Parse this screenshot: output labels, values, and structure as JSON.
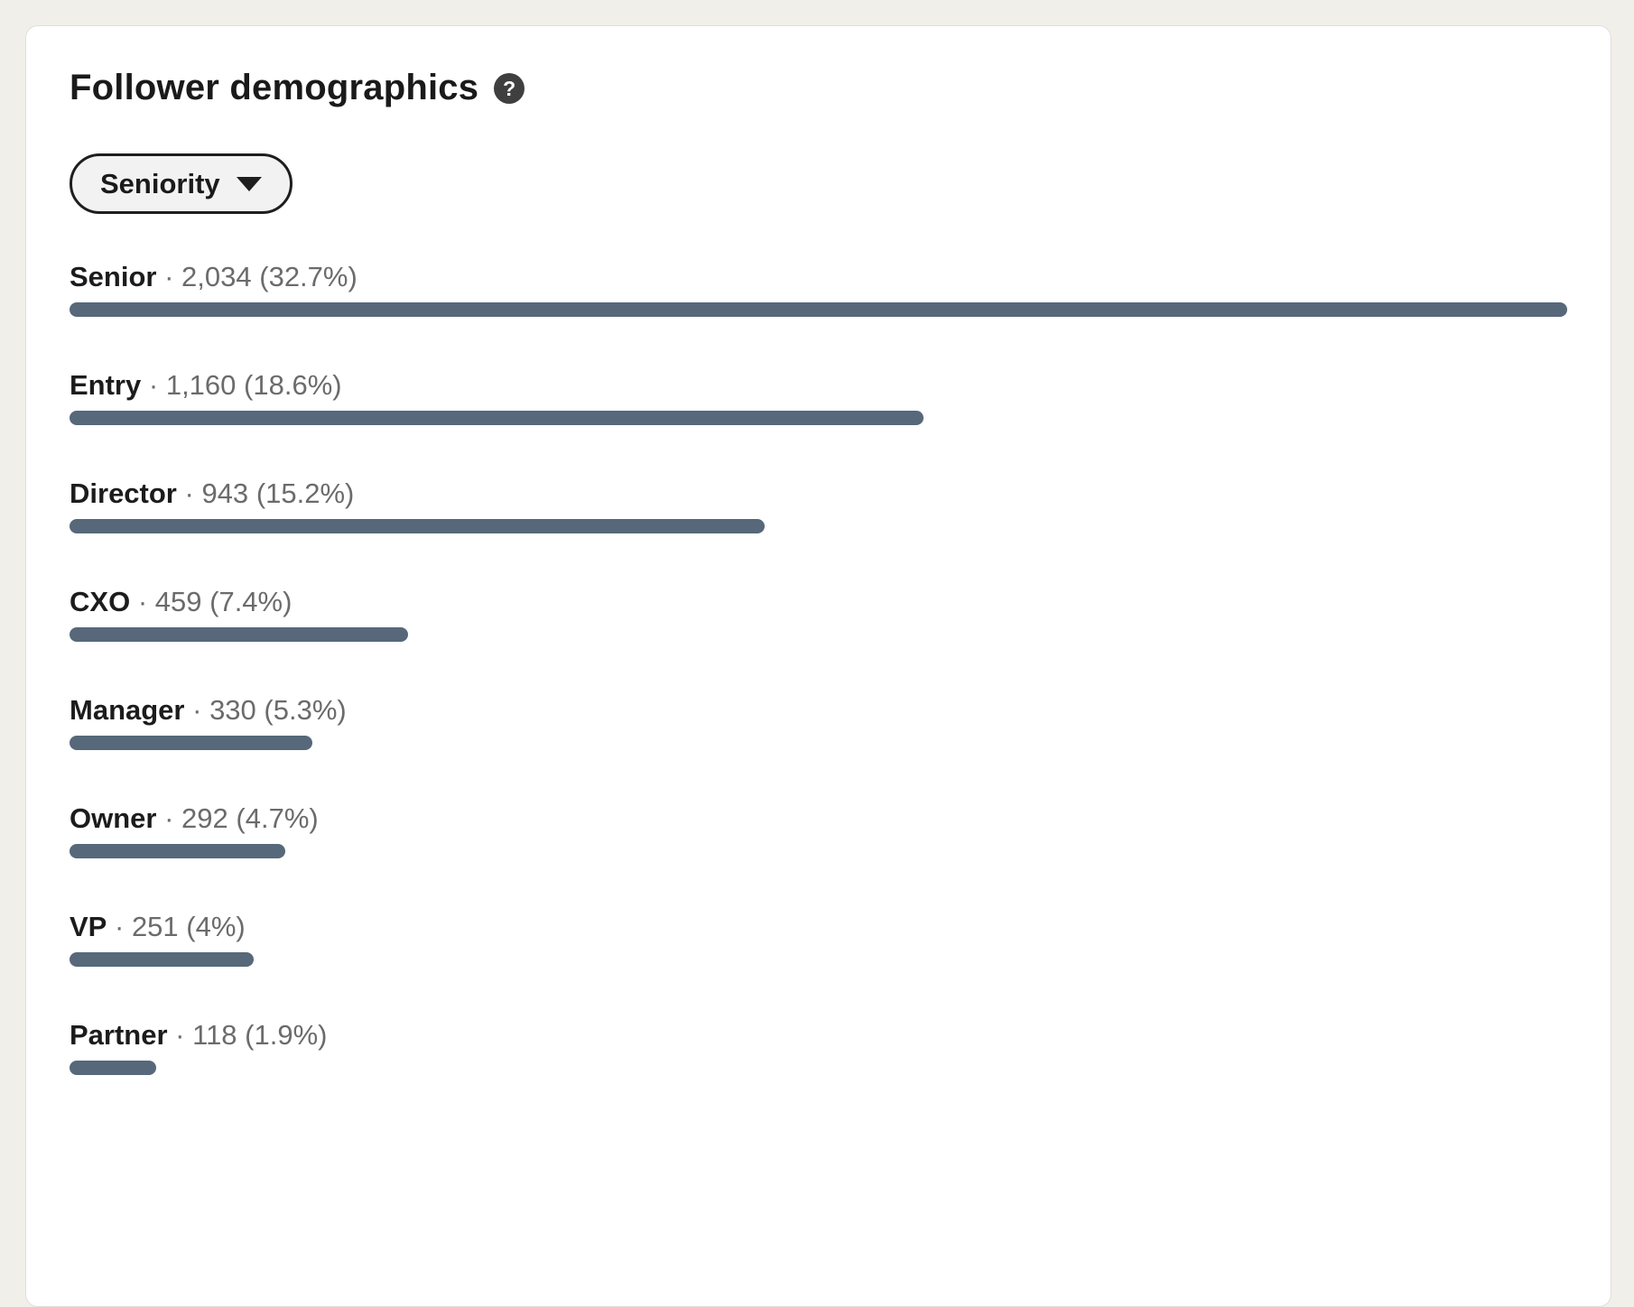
{
  "page": {
    "background_color": "#f1efea"
  },
  "card": {
    "title": "Follower demographics",
    "help_icon_glyph": "?",
    "filter": {
      "label": "Seniority"
    }
  },
  "separator": "·",
  "colors": {
    "bar": "#56687a",
    "label_text": "#1c1c1c",
    "value_text": "#6b6b6b",
    "help_icon_bg": "#3f3f3f",
    "pill_border": "#1e1e1e",
    "pill_bg": "#f2f2f2",
    "card_bg": "#ffffff"
  },
  "rows": [
    {
      "label": "Senior",
      "value": "2,034",
      "percent_display": "(32.7%)",
      "bar_pct": 100
    },
    {
      "label": "Entry",
      "value": "1,160",
      "percent_display": "(18.6%)",
      "bar_pct": 57.0
    },
    {
      "label": "Director",
      "value": "943",
      "percent_display": "(15.2%)",
      "bar_pct": 46.4
    },
    {
      "label": "CXO",
      "value": "459",
      "percent_display": "(7.4%)",
      "bar_pct": 22.6
    },
    {
      "label": "Manager",
      "value": "330",
      "percent_display": "(5.3%)",
      "bar_pct": 16.2
    },
    {
      "label": "Owner",
      "value": "292",
      "percent_display": "(4.7%)",
      "bar_pct": 14.4
    },
    {
      "label": "VP",
      "value": "251",
      "percent_display": "(4%)",
      "bar_pct": 12.3
    },
    {
      "label": "Partner",
      "value": "118",
      "percent_display": "(1.9%)",
      "bar_pct": 5.8
    }
  ],
  "chart_data": {
    "type": "bar",
    "orientation": "horizontal",
    "title": "Follower demographics",
    "filter_selected": "Seniority",
    "categories": [
      "Senior",
      "Entry",
      "Director",
      "CXO",
      "Manager",
      "Owner",
      "VP",
      "Partner"
    ],
    "values": [
      2034,
      1160,
      943,
      459,
      330,
      292,
      251,
      118
    ],
    "percentages": [
      32.7,
      18.6,
      15.2,
      7.4,
      5.3,
      4.7,
      4.0,
      1.9
    ],
    "bar_color": "#56687a",
    "legend": "none",
    "grid": "off"
  }
}
